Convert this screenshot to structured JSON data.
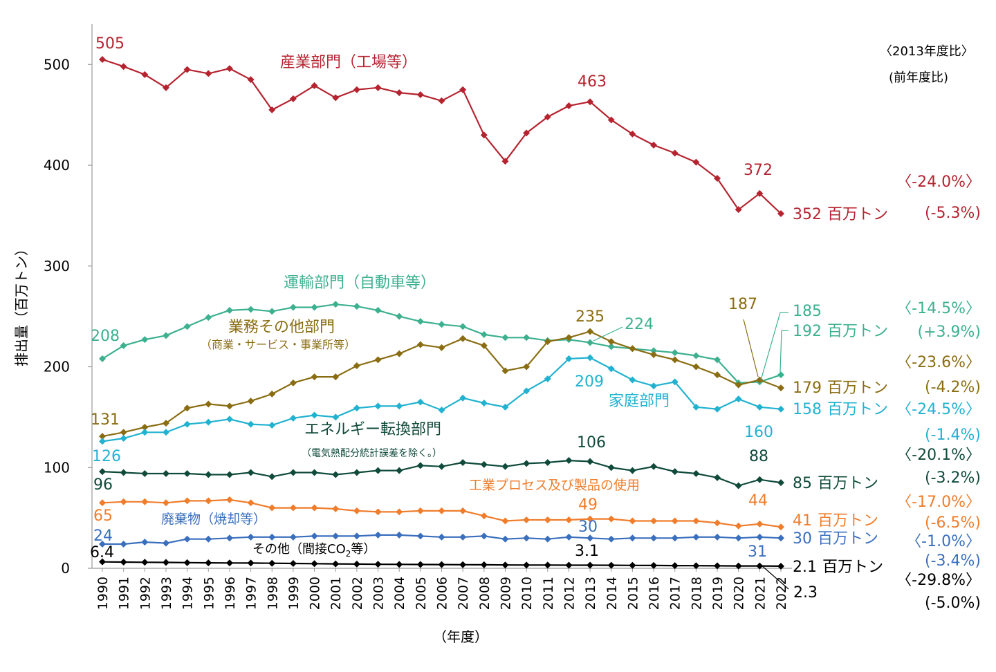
{
  "chart_data": {
    "type": "line",
    "ylabel": "排出量（百万トン）",
    "xlabel": "（年度）",
    "ylim": [
      0,
      540
    ],
    "yticks": [
      0,
      100,
      200,
      300,
      400,
      500
    ],
    "x": [
      "1990",
      "1991",
      "1992",
      "1993",
      "1994",
      "1995",
      "1996",
      "1997",
      "1998",
      "1999",
      "2000",
      "2001",
      "2002",
      "2003",
      "2004",
      "2005",
      "2006",
      "2007",
      "2008",
      "2009",
      "2010",
      "2011",
      "2012",
      "2013",
      "2014",
      "2015",
      "2016",
      "2017",
      "2018",
      "2019",
      "2020",
      "2021",
      "2022"
    ],
    "legend_headers": {
      "vs2013": "〈2013年度比〉",
      "vsPrev": "(前年度比)"
    },
    "series": [
      {
        "name": "産業部門（工場等）",
        "color": "#b5232f",
        "values": [
          505,
          498,
          490,
          477,
          495,
          491,
          496,
          485,
          455,
          466,
          479,
          467,
          475,
          477,
          472,
          470,
          464,
          475,
          430,
          404,
          432,
          448,
          459,
          463,
          445,
          431,
          420,
          412,
          403,
          387,
          356,
          372,
          352
        ],
        "point_labels": [
          "505",
          "463",
          "372"
        ],
        "end_value": "352",
        "unit": "百万トン",
        "pct_2013": "〈-24.0%〉",
        "pct_prev": "(-5.3%)"
      },
      {
        "name": "運輸部門（自動車等）",
        "color": "#3cb08f",
        "values": [
          208,
          221,
          227,
          231,
          240,
          249,
          256,
          257,
          255,
          259,
          259,
          262,
          260,
          256,
          250,
          245,
          242,
          240,
          232,
          229,
          229,
          226,
          227,
          224,
          220,
          218,
          216,
          214,
          211,
          207,
          184,
          185,
          192
        ],
        "point_labels": [
          "208",
          "224",
          "185"
        ],
        "end_value": "192",
        "unit": "百万トン",
        "pct_2013": "〈-14.5%〉",
        "pct_prev": "(+3.9%)"
      },
      {
        "name": "業務その他部門",
        "sub_label": "（商業・サービス・事業所等）",
        "color": "#8a6d12",
        "values": [
          131,
          135,
          140,
          144,
          159,
          163,
          161,
          166,
          173,
          184,
          190,
          190,
          201,
          207,
          213,
          222,
          219,
          228,
          221,
          196,
          200,
          225,
          229,
          235,
          225,
          218,
          212,
          207,
          200,
          192,
          182,
          187,
          179
        ],
        "point_labels": [
          "131",
          "235",
          "187"
        ],
        "end_value": "179",
        "unit": "百万トン",
        "pct_2013": "〈-23.6%〉",
        "pct_prev": "(-4.2%)"
      },
      {
        "name": "家庭部門",
        "color": "#21b2d0",
        "values": [
          126,
          129,
          135,
          135,
          143,
          145,
          148,
          143,
          142,
          149,
          152,
          150,
          159,
          161,
          161,
          165,
          157,
          169,
          164,
          160,
          176,
          188,
          208,
          209,
          198,
          187,
          181,
          185,
          160,
          158,
          168,
          160,
          158
        ],
        "point_labels": [
          "126",
          "209",
          "160"
        ],
        "end_value": "158",
        "unit": "百万トン",
        "pct_2013": "〈-24.5%〉",
        "pct_prev": "(-1.4%)"
      },
      {
        "name": "エネルギー転換部門",
        "sub_label": "（電気熱配分統計誤差を除く。）",
        "color": "#0f4a3a",
        "values": [
          96,
          95,
          94,
          94,
          94,
          93,
          93,
          95,
          91,
          95,
          95,
          93,
          95,
          97,
          97,
          102,
          101,
          105,
          103,
          101,
          104,
          105,
          107,
          106,
          100,
          97,
          101,
          96,
          94,
          90,
          82,
          88,
          85
        ],
        "point_labels": [
          "96",
          "106",
          "88"
        ],
        "end_value": "85",
        "unit": "百万トン",
        "pct_2013": "〈-20.1%〉",
        "pct_prev": "(-3.2%)"
      },
      {
        "name": "工業プロセス及び製品の使用",
        "color": "#ef7d2c",
        "values": [
          65,
          66,
          66,
          65,
          67,
          67,
          68,
          65,
          60,
          60,
          60,
          59,
          57,
          56,
          56,
          57,
          57,
          57,
          52,
          47,
          48,
          48,
          48,
          49,
          49,
          47,
          47,
          47,
          47,
          45,
          42,
          44,
          41
        ],
        "point_labels": [
          "65",
          "49",
          "44"
        ],
        "end_value": "41",
        "unit": "百万トン",
        "pct_2013": "〈-17.0%〉",
        "pct_prev": "(-6.5%)"
      },
      {
        "name": "廃棄物（焼却等）",
        "color": "#3a6fbd",
        "values": [
          24,
          24,
          26,
          25,
          29,
          29,
          30,
          31,
          31,
          31,
          32,
          32,
          32,
          33,
          33,
          32,
          31,
          31,
          32,
          29,
          30,
          29,
          31,
          30,
          29,
          30,
          30,
          30,
          31,
          31,
          30,
          31,
          30
        ],
        "point_labels": [
          "24",
          "30",
          "31"
        ],
        "end_value": "30",
        "unit": "百万トン",
        "pct_2013": "〈-1.0%〉",
        "pct_prev": "(-3.4%)"
      },
      {
        "name_prefix": "その他（間接CO",
        "name_sub": "2",
        "name_suffix": "等）",
        "color": "#000000",
        "values": [
          6.4,
          6.2,
          6.0,
          5.8,
          5.6,
          5.4,
          5.3,
          5.2,
          5.0,
          4.8,
          4.6,
          4.4,
          4.2,
          4.0,
          3.9,
          3.8,
          3.7,
          3.6,
          3.5,
          3.3,
          3.2,
          3.2,
          3.1,
          3.1,
          3.0,
          2.9,
          2.8,
          2.7,
          2.6,
          2.5,
          2.3,
          2.3,
          2.1
        ],
        "point_labels": [
          "6.4",
          "3.1",
          "2.3"
        ],
        "end_value": "2.1",
        "unit": "百万トン",
        "pct_2013": "〈-29.8%〉",
        "pct_prev": "(-5.0%)"
      }
    ]
  }
}
